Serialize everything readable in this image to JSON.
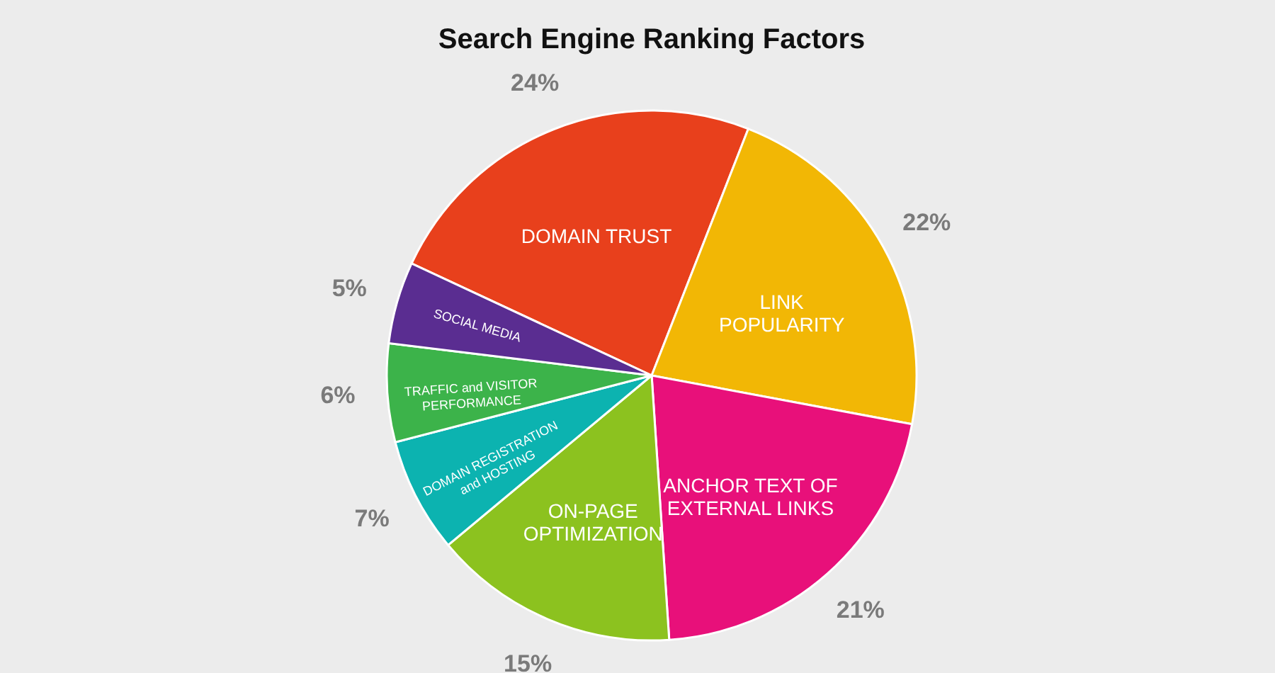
{
  "chart_data": {
    "type": "pie",
    "title": "Search Engine Ranking Factors",
    "categories": [
      "DOMAIN TRUST",
      "LINK POPULARITY",
      "ANCHOR TEXT OF EXTERNAL LINKS",
      "ON-PAGE OPTIMIZATION",
      "DOMAIN REGISTRATION and HOSTING",
      "TRAFFIC and VISITOR PERFORMANCE",
      "SOCIAL MEDIA"
    ],
    "values": [
      24,
      22,
      21,
      15,
      7,
      6,
      5
    ],
    "colors": [
      "#e8401c",
      "#f2b705",
      "#e8107a",
      "#8cc21f",
      "#0cb3b0",
      "#3cb34a",
      "#5a2d91"
    ],
    "value_labels": [
      "24%",
      "22%",
      "21%",
      "15%",
      "7%",
      "6%",
      "5%"
    ]
  }
}
